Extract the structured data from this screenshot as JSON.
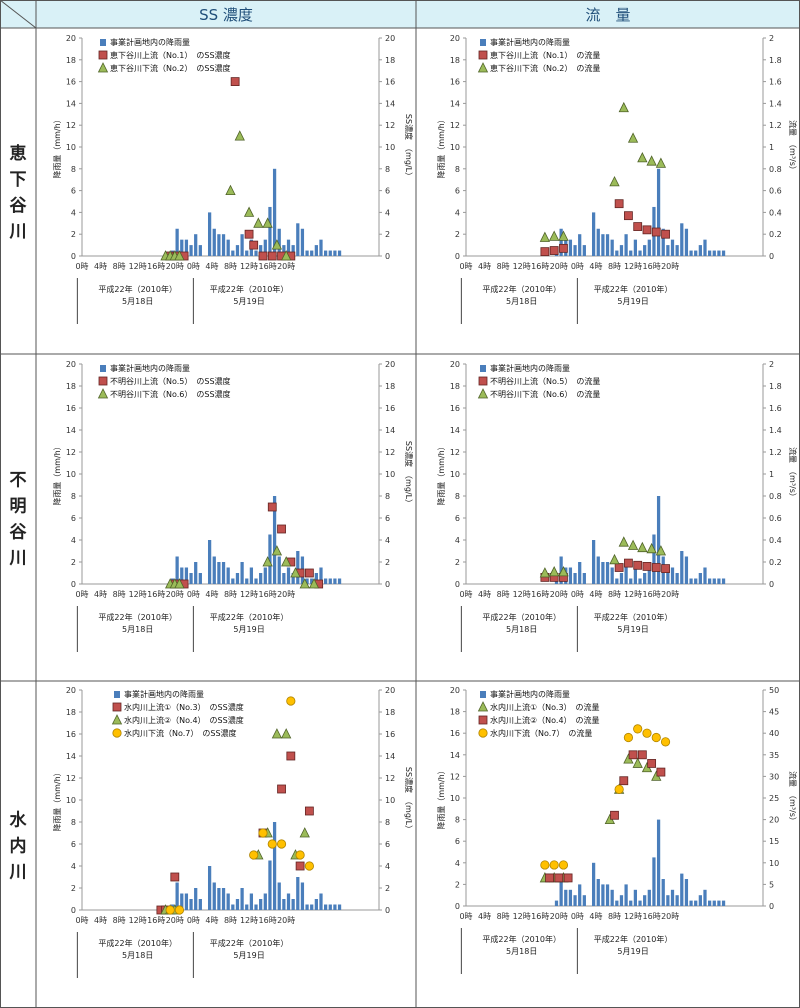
{
  "header": {
    "col_ss": "SS 濃度",
    "col_flow": "流　量"
  },
  "rows": [
    {
      "label": [
        "恵",
        "下",
        "谷",
        "川"
      ]
    },
    {
      "label": [
        "不",
        "明",
        "谷",
        "川"
      ]
    },
    {
      "label": [
        "水",
        "内",
        "川"
      ]
    }
  ],
  "colors": {
    "header_bg": "#d9f1f7",
    "header_text": "#1f4e79",
    "row_label_bg": "#ffffff",
    "rain_bar": "#4a7ebb",
    "square": "#c0504d",
    "triangle": "#9bbb59",
    "circle": "#ffc000",
    "axis": "#999999"
  },
  "x_axis": {
    "ticks": [
      "0時",
      "4時",
      "8時",
      "12時",
      "16時",
      "20時",
      "0時",
      "4時",
      "8時",
      "12時",
      "16時",
      "20時"
    ],
    "day1_label": "平成22年（2010年）",
    "day1_date": "5月18日",
    "day2_label": "平成22年（2010年）",
    "day2_date": "5月19日"
  },
  "rainfall": [
    {
      "x": 19.5,
      "y": 0.5
    },
    {
      "x": 20.5,
      "y": 2.5
    },
    {
      "x": 21.5,
      "y": 1.5
    },
    {
      "x": 22.5,
      "y": 1.5
    },
    {
      "x": 23.5,
      "y": 1.0
    },
    {
      "x": 24.5,
      "y": 2.0
    },
    {
      "x": 25.5,
      "y": 1.0
    },
    {
      "x": 27.5,
      "y": 4.0
    },
    {
      "x": 28.5,
      "y": 2.5
    },
    {
      "x": 29.5,
      "y": 2.0
    },
    {
      "x": 30.5,
      "y": 2.0
    },
    {
      "x": 31.5,
      "y": 1.5
    },
    {
      "x": 32.5,
      "y": 0.5
    },
    {
      "x": 33.5,
      "y": 1.0
    },
    {
      "x": 34.5,
      "y": 2.0
    },
    {
      "x": 35.5,
      "y": 0.5
    },
    {
      "x": 36.5,
      "y": 1.5
    },
    {
      "x": 37.5,
      "y": 0.5
    },
    {
      "x": 38.5,
      "y": 1.0
    },
    {
      "x": 39.5,
      "y": 1.5
    },
    {
      "x": 40.5,
      "y": 4.5
    },
    {
      "x": 41.5,
      "y": 8.0
    },
    {
      "x": 42.5,
      "y": 2.5
    },
    {
      "x": 43.5,
      "y": 1.0
    },
    {
      "x": 44.5,
      "y": 1.5
    },
    {
      "x": 45.5,
      "y": 1.0
    },
    {
      "x": 46.5,
      "y": 3.0
    },
    {
      "x": 47.5,
      "y": 2.5
    },
    {
      "x": 48.5,
      "y": 0.5
    },
    {
      "x": 49.5,
      "y": 0.5
    },
    {
      "x": 50.5,
      "y": 1.0
    },
    {
      "x": 51.5,
      "y": 1.5
    },
    {
      "x": 52.5,
      "y": 0.5
    },
    {
      "x": 53.5,
      "y": 0.5
    },
    {
      "x": 54.5,
      "y": 0.5
    },
    {
      "x": 55.5,
      "y": 0.5
    }
  ],
  "chart_data": [
    {
      "id": "r1-ss",
      "type": "bar",
      "ylabel_left": "降雨量（mm/h）",
      "ylabel_right": "SS濃度　（mg/L）",
      "ylim_left": [
        0,
        20
      ],
      "ylim_right": [
        0,
        20
      ],
      "yticks_left": [
        "0",
        "2",
        "4",
        "6",
        "8",
        "10",
        "12",
        "14",
        "16",
        "18",
        "20"
      ],
      "yticks_right": [
        "0",
        "2",
        "4",
        "6",
        "8",
        "10",
        "12",
        "14",
        "16",
        "18",
        "20"
      ],
      "legend": {
        "rain": "事業計画地内の降雨量"
      },
      "series": [
        {
          "name": "恵下谷川上流（No.1）　のSS濃度",
          "marker": "square",
          "points": [
            [
              19,
              0
            ],
            [
              20.5,
              0
            ],
            [
              22,
              0
            ],
            [
              33,
              16
            ],
            [
              36,
              2
            ],
            [
              37,
              1
            ],
            [
              39,
              0
            ],
            [
              41,
              0
            ],
            [
              43,
              0
            ],
            [
              45,
              0
            ]
          ]
        },
        {
          "name": "恵下谷川下流（No.2）　のSS濃度",
          "marker": "triangle",
          "points": [
            [
              18,
              0
            ],
            [
              19,
              0
            ],
            [
              20,
              0
            ],
            [
              21,
              0
            ],
            [
              32,
              6
            ],
            [
              34,
              11
            ],
            [
              36,
              4
            ],
            [
              38,
              3
            ],
            [
              40,
              3
            ],
            [
              42,
              1
            ],
            [
              44,
              0
            ]
          ]
        }
      ]
    },
    {
      "id": "r1-flow",
      "type": "bar",
      "ylabel_left": "降雨量（mm/h）",
      "ylabel_right": "流量　（m³/s）",
      "ylim_left": [
        0,
        20
      ],
      "ylim_right": [
        0,
        2
      ],
      "yticks_left": [
        "0",
        "2",
        "4",
        "6",
        "8",
        "10",
        "12",
        "14",
        "16",
        "18",
        "20"
      ],
      "yticks_right": [
        "0",
        "0.2",
        "0.4",
        "0.6",
        "0.8",
        "1",
        "1.2",
        "1.4",
        "1.6",
        "1.8",
        "2"
      ],
      "legend": {
        "rain": "事業計画地内の降雨量"
      },
      "series": [
        {
          "name": "恵下谷川上流（No.1）　の流量",
          "marker": "square",
          "points": [
            [
              17,
              0.04
            ],
            [
              19,
              0.05
            ],
            [
              21,
              0.07
            ],
            [
              33,
              0.48
            ],
            [
              35,
              0.37
            ],
            [
              37,
              0.27
            ],
            [
              39,
              0.24
            ],
            [
              41,
              0.22
            ],
            [
              43,
              0.2
            ]
          ]
        },
        {
          "name": "恵下谷川下流（No.2）　の流量",
          "marker": "triangle",
          "points": [
            [
              17,
              0.17
            ],
            [
              19,
              0.18
            ],
            [
              21,
              0.18
            ],
            [
              32,
              0.68
            ],
            [
              34,
              1.36
            ],
            [
              36,
              1.08
            ],
            [
              38,
              0.9
            ],
            [
              40,
              0.87
            ],
            [
              42,
              0.85
            ]
          ]
        }
      ]
    },
    {
      "id": "r2-ss",
      "type": "bar",
      "ylabel_left": "降雨量（mm/h）",
      "ylabel_right": "SS濃度　（mg/L）",
      "ylim_left": [
        0,
        20
      ],
      "ylim_right": [
        0,
        20
      ],
      "yticks_left": [
        "0",
        "2",
        "4",
        "6",
        "8",
        "10",
        "12",
        "14",
        "16",
        "18",
        "20"
      ],
      "yticks_right": [
        "0",
        "2",
        "4",
        "6",
        "8",
        "10",
        "12",
        "14",
        "16",
        "18",
        "20"
      ],
      "legend": {
        "rain": "事業計画地内の降雨量"
      },
      "series": [
        {
          "name": "不明谷川上流（No.5）　のSS濃度",
          "marker": "square",
          "points": [
            [
              20,
              0
            ],
            [
              21,
              0
            ],
            [
              22,
              0
            ],
            [
              41,
              7
            ],
            [
              43,
              5
            ],
            [
              45,
              2
            ],
            [
              47,
              1
            ],
            [
              49,
              1
            ],
            [
              51,
              0
            ]
          ]
        },
        {
          "name": "不明谷川下流（No.6）　のSS濃度",
          "marker": "triangle",
          "points": [
            [
              19,
              0
            ],
            [
              20,
              0
            ],
            [
              21,
              0
            ],
            [
              40,
              2
            ],
            [
              42,
              3
            ],
            [
              44,
              2
            ],
            [
              46,
              1
            ],
            [
              48,
              0
            ],
            [
              50,
              0
            ]
          ]
        }
      ]
    },
    {
      "id": "r2-flow",
      "type": "bar",
      "ylabel_left": "降雨量（mm/h）",
      "ylabel_right": "流量　（m³/s）",
      "ylim_left": [
        0,
        20
      ],
      "ylim_right": [
        0,
        2
      ],
      "yticks_left": [
        "0",
        "2",
        "4",
        "6",
        "8",
        "10",
        "12",
        "14",
        "16",
        "18",
        "20"
      ],
      "yticks_right": [
        "0",
        "0.2",
        "0.4",
        "0.6",
        "0.8",
        "1",
        "1.2",
        "1.4",
        "1.6",
        "1.8",
        "2"
      ],
      "legend": {
        "rain": "事業計画地内の降雨量"
      },
      "series": [
        {
          "name": "不明谷川上流（No.5）　の流量",
          "marker": "square",
          "points": [
            [
              17,
              0.06
            ],
            [
              19,
              0.06
            ],
            [
              21,
              0.06
            ],
            [
              33,
              0.15
            ],
            [
              35,
              0.19
            ],
            [
              37,
              0.17
            ],
            [
              39,
              0.16
            ],
            [
              41,
              0.15
            ],
            [
              43,
              0.14
            ]
          ]
        },
        {
          "name": "不明谷川下流（No.6）　の流量",
          "marker": "triangle",
          "points": [
            [
              17,
              0.1
            ],
            [
              19,
              0.11
            ],
            [
              21,
              0.11
            ],
            [
              32,
              0.22
            ],
            [
              34,
              0.38
            ],
            [
              36,
              0.35
            ],
            [
              38,
              0.33
            ],
            [
              40,
              0.32
            ],
            [
              42,
              0.3
            ]
          ]
        }
      ]
    },
    {
      "id": "r3-ss",
      "type": "bar",
      "ylabel_left": "降雨量（mm/h）",
      "ylabel_right": "SS濃度　（mg/L）",
      "ylim_left": [
        0,
        20
      ],
      "ylim_right": [
        0,
        20
      ],
      "yticks_left": [
        "0",
        "2",
        "4",
        "6",
        "8",
        "10",
        "12",
        "14",
        "16",
        "18",
        "20"
      ],
      "yticks_right": [
        "0",
        "2",
        "4",
        "6",
        "8",
        "10",
        "12",
        "14",
        "16",
        "18",
        "20"
      ],
      "legend": {
        "rain": "事業計画地内の降雨量"
      },
      "series": [
        {
          "name": "水内川上流①（No.3）　のSS濃度",
          "marker": "square",
          "points": [
            [
              17,
              0
            ],
            [
              18,
              0
            ],
            [
              20,
              3
            ],
            [
              39,
              7
            ],
            [
              43,
              11
            ],
            [
              45,
              14
            ],
            [
              47,
              4
            ],
            [
              49,
              9
            ]
          ]
        },
        {
          "name": "水内川上流②（No.4）　のSS濃度",
          "marker": "triangle",
          "points": [
            [
              18,
              0
            ],
            [
              19,
              0
            ],
            [
              20,
              0
            ],
            [
              38,
              5
            ],
            [
              40,
              7
            ],
            [
              42,
              16
            ],
            [
              44,
              16
            ],
            [
              46,
              5
            ],
            [
              48,
              7
            ]
          ]
        },
        {
          "name": "水内川下流（No.7）　のSS濃度",
          "marker": "circle",
          "points": [
            [
              19,
              0
            ],
            [
              21,
              0
            ],
            [
              37,
              5
            ],
            [
              39,
              7
            ],
            [
              41,
              6
            ],
            [
              43,
              6
            ],
            [
              45,
              19
            ],
            [
              47,
              5
            ],
            [
              49,
              4
            ]
          ]
        }
      ]
    },
    {
      "id": "r3-flow",
      "type": "bar",
      "ylabel_left": "降雨量（mm/h）",
      "ylabel_right": "流量　（m³/s）",
      "ylim_left": [
        0,
        20
      ],
      "ylim_right": [
        0,
        50
      ],
      "yticks_left": [
        "0",
        "2",
        "4",
        "6",
        "8",
        "10",
        "12",
        "14",
        "16",
        "18",
        "20"
      ],
      "yticks_right": [
        "0",
        "5",
        "10",
        "15",
        "20",
        "25",
        "30",
        "35",
        "40",
        "45",
        "50"
      ],
      "legend": {
        "rain": "事業計画地内の降雨量"
      },
      "series": [
        {
          "name": "水内川上流①（No.3）　の流量",
          "marker": "triangle",
          "points": [
            [
              17,
              6.5
            ],
            [
              19,
              6.5
            ],
            [
              21,
              6.5
            ],
            [
              31,
              20
            ],
            [
              33,
              27
            ],
            [
              35,
              34
            ],
            [
              37,
              33
            ],
            [
              39,
              32
            ],
            [
              41,
              30
            ]
          ]
        },
        {
          "name": "水内川上流②（No.4）　の流量",
          "marker": "square",
          "points": [
            [
              18,
              6.5
            ],
            [
              20,
              6.5
            ],
            [
              22,
              6.5
            ],
            [
              32,
              21
            ],
            [
              34,
              29
            ],
            [
              36,
              35
            ],
            [
              38,
              35
            ],
            [
              40,
              33
            ],
            [
              42,
              31
            ]
          ]
        },
        {
          "name": "水内川下流（No.7）　の流量",
          "marker": "circle",
          "points": [
            [
              17,
              9.5
            ],
            [
              19,
              9.5
            ],
            [
              21,
              9.5
            ],
            [
              33,
              27
            ],
            [
              35,
              39
            ],
            [
              37,
              41
            ],
            [
              39,
              40
            ],
            [
              41,
              39
            ],
            [
              43,
              38
            ]
          ]
        }
      ]
    }
  ]
}
